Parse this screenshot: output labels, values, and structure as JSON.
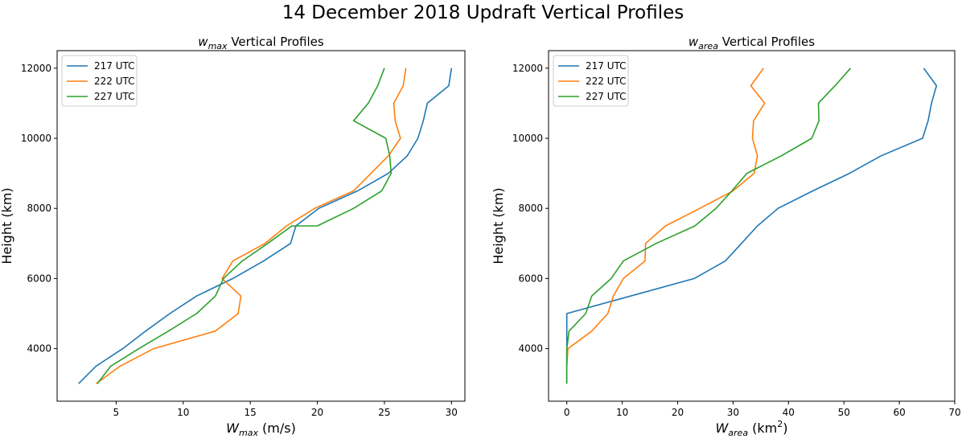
{
  "figure": {
    "suptitle": "14 December 2018 Updraft Vertical Profiles"
  },
  "chart_data": [
    {
      "type": "line",
      "title": "w_max Vertical Profiles",
      "title_parts": {
        "sym": "w",
        "sub": "max",
        "rest": " Vertical Profiles"
      },
      "xlabel": "W_max (m/s)",
      "xlabel_parts": {
        "sym": "W",
        "sub": "max",
        "rest": " (m/s)"
      },
      "ylabel": "Height (km)",
      "xlim": [
        0.6,
        31.0
      ],
      "ylim": [
        2500,
        12500
      ],
      "xticks": [
        5,
        10,
        15,
        20,
        25,
        30
      ],
      "yticks": [
        4000,
        6000,
        8000,
        10000,
        12000
      ],
      "legend_position": "upper left",
      "series": [
        {
          "name": "217 UTC",
          "color": "#1f77b4",
          "points": [
            [
              2.2,
              3000
            ],
            [
              3.5,
              3500
            ],
            [
              5.5,
              4000
            ],
            [
              7.2,
              4500
            ],
            [
              9.0,
              5000
            ],
            [
              11.0,
              5500
            ],
            [
              13.7,
              6000
            ],
            [
              16.0,
              6500
            ],
            [
              18.0,
              7000
            ],
            [
              18.4,
              7500
            ],
            [
              20.1,
              8000
            ],
            [
              23.0,
              8500
            ],
            [
              25.3,
              9000
            ],
            [
              26.7,
              9500
            ],
            [
              27.5,
              10000
            ],
            [
              27.9,
              10500
            ],
            [
              28.2,
              11000
            ],
            [
              29.8,
              11500
            ],
            [
              30.0,
              12000
            ]
          ]
        },
        {
          "name": "222 UTC",
          "color": "#ff7f0e",
          "points": [
            [
              3.5,
              3000
            ],
            [
              5.3,
              3500
            ],
            [
              7.8,
              4000
            ],
            [
              12.4,
              4500
            ],
            [
              14.1,
              5000
            ],
            [
              14.3,
              5500
            ],
            [
              12.9,
              6000
            ],
            [
              13.7,
              6500
            ],
            [
              16.1,
              7000
            ],
            [
              17.7,
              7500
            ],
            [
              19.8,
              8000
            ],
            [
              22.7,
              8500
            ],
            [
              24.0,
              9000
            ],
            [
              25.3,
              9500
            ],
            [
              26.2,
              10000
            ],
            [
              25.8,
              10500
            ],
            [
              25.7,
              11000
            ],
            [
              26.4,
              11500
            ],
            [
              26.6,
              12000
            ]
          ]
        },
        {
          "name": "227 UTC",
          "color": "#2ca02c",
          "points": [
            [
              3.6,
              3000
            ],
            [
              4.6,
              3500
            ],
            [
              6.7,
              4000
            ],
            [
              8.9,
              4500
            ],
            [
              11.0,
              5000
            ],
            [
              12.4,
              5500
            ],
            [
              13.0,
              6000
            ],
            [
              14.4,
              6500
            ],
            [
              16.3,
              7000
            ],
            [
              18.1,
              7500
            ],
            [
              20.0,
              7500
            ],
            [
              22.7,
              8000
            ],
            [
              24.8,
              8500
            ],
            [
              25.5,
              9000
            ],
            [
              25.4,
              9500
            ],
            [
              25.1,
              10000
            ],
            [
              22.7,
              10500
            ],
            [
              23.8,
              11000
            ],
            [
              24.5,
              11500
            ],
            [
              25.0,
              12000
            ]
          ]
        }
      ]
    },
    {
      "type": "line",
      "title": "w_area Vertical Profiles",
      "title_parts": {
        "sym": "w",
        "sub": "area",
        "rest": " Vertical Profiles"
      },
      "xlabel": "W_area (km^2)",
      "xlabel_parts": {
        "sym": "W",
        "sub": "area",
        "rest": " (km",
        "sup": "2",
        "rest2": ")"
      },
      "ylabel": "Height (km)",
      "xlim": [
        -3.3,
        70.0
      ],
      "ylim": [
        2500,
        12500
      ],
      "xticks": [
        0,
        10,
        20,
        30,
        40,
        50,
        60,
        70
      ],
      "yticks": [
        4000,
        6000,
        8000,
        10000,
        12000
      ],
      "legend_position": "upper left",
      "series": [
        {
          "name": "217 UTC",
          "color": "#1f77b4",
          "points": [
            [
              0,
              3000
            ],
            [
              0,
              3500
            ],
            [
              0,
              4000
            ],
            [
              0,
              4500
            ],
            [
              0,
              5000
            ],
            [
              23.0,
              6000
            ],
            [
              28.6,
              6500
            ],
            [
              31.5,
              7000
            ],
            [
              34.4,
              7500
            ],
            [
              38.1,
              8000
            ],
            [
              44.4,
              8500
            ],
            [
              51.0,
              9000
            ],
            [
              56.7,
              9500
            ],
            [
              64.2,
              10000
            ],
            [
              65.2,
              10500
            ],
            [
              65.8,
              11000
            ],
            [
              66.7,
              11500
            ],
            [
              64.4,
              12000
            ]
          ]
        },
        {
          "name": "222 UTC",
          "color": "#ff7f0e",
          "points": [
            [
              0,
              3000
            ],
            [
              0,
              3500
            ],
            [
              0.2,
              4000
            ],
            [
              4.5,
              4500
            ],
            [
              7.4,
              5000
            ],
            [
              8.4,
              5500
            ],
            [
              10.2,
              6000
            ],
            [
              14.1,
              6500
            ],
            [
              14.2,
              7000
            ],
            [
              17.8,
              7500
            ],
            [
              24.0,
              8000
            ],
            [
              30.0,
              8500
            ],
            [
              33.8,
              9000
            ],
            [
              34.4,
              9500
            ],
            [
              33.5,
              10000
            ],
            [
              33.7,
              10500
            ],
            [
              35.7,
              11000
            ],
            [
              33.2,
              11500
            ],
            [
              35.5,
              12000
            ]
          ]
        },
        {
          "name": "227 UTC",
          "color": "#2ca02c",
          "points": [
            [
              0,
              3000
            ],
            [
              0,
              3500
            ],
            [
              0,
              4000
            ],
            [
              0.4,
              4500
            ],
            [
              3.4,
              5000
            ],
            [
              4.5,
              5500
            ],
            [
              8.0,
              6000
            ],
            [
              10.2,
              6500
            ],
            [
              16.1,
              7000
            ],
            [
              23.1,
              7500
            ],
            [
              26.9,
              8000
            ],
            [
              29.8,
              8500
            ],
            [
              32.5,
              9000
            ],
            [
              38.7,
              9500
            ],
            [
              44.2,
              10000
            ],
            [
              45.5,
              10500
            ],
            [
              45.4,
              11000
            ],
            [
              48.4,
              11500
            ],
            [
              51.2,
              12000
            ]
          ]
        }
      ]
    }
  ]
}
